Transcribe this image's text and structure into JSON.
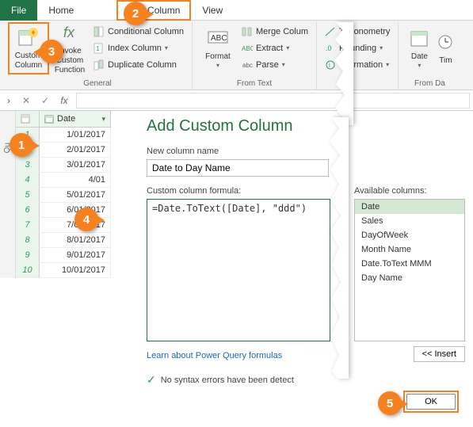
{
  "tabs": {
    "file": "File",
    "home": "Home",
    "t2": "  ",
    "addcol": "Add Column",
    "view": "View"
  },
  "ribbon": {
    "group_general": "General",
    "group_fromtext": "From Text",
    "group_fromdate": "From Da",
    "custom_column": "Custom Column",
    "invoke": "Invoke Custom Function",
    "cond": "Conditional Column",
    "index": "Index Column",
    "dup": "Duplicate Column",
    "format": "Format",
    "merge": "Merge Colum",
    "extract": "Extract",
    "parse": "Parse",
    "trig": "Trigonometry",
    "round": "Rounding",
    "info": "Information",
    "date": "Date",
    "tim": "Tim"
  },
  "grid": {
    "header_date": "Date",
    "rows": [
      {
        "n": "1",
        "d": "1/01/2017"
      },
      {
        "n": "2",
        "d": "2/01/2017"
      },
      {
        "n": "3",
        "d": "3/01/2017"
      },
      {
        "n": "4",
        "d": "4/01"
      },
      {
        "n": "5",
        "d": "5/01/2017"
      },
      {
        "n": "6",
        "d": "6/01/2017"
      },
      {
        "n": "7",
        "d": "7/01/2017"
      },
      {
        "n": "8",
        "d": "8/01/2017"
      },
      {
        "n": "9",
        "d": "9/01/2017"
      },
      {
        "n": "10",
        "d": "10/01/2017"
      }
    ],
    "sidetab": "Qu"
  },
  "dialog": {
    "title": "Add Custom Column",
    "newname_label": "New column name",
    "newname_value": "Date to Day Name",
    "formula_label": "Custom column formula:",
    "formula_value": "=Date.ToText([Date], \"ddd\")",
    "avail_label": "Available columns:",
    "avail_items": [
      "Date",
      "Sales",
      "DayOfWeek",
      "Month Name",
      "Date.ToText MMM",
      "Day Name"
    ],
    "insert_btn": "<< Insert",
    "link": "Learn about Power Query formulas",
    "status": "No syntax errors have been detect",
    "ok": "OK"
  },
  "callouts": {
    "c1": "1",
    "c2": "2",
    "c3": "3",
    "c4": "4",
    "c5": "5"
  },
  "colors": {
    "accent": "#217346",
    "callout": "#f5821f",
    "highlight_border": "#f5821f"
  }
}
